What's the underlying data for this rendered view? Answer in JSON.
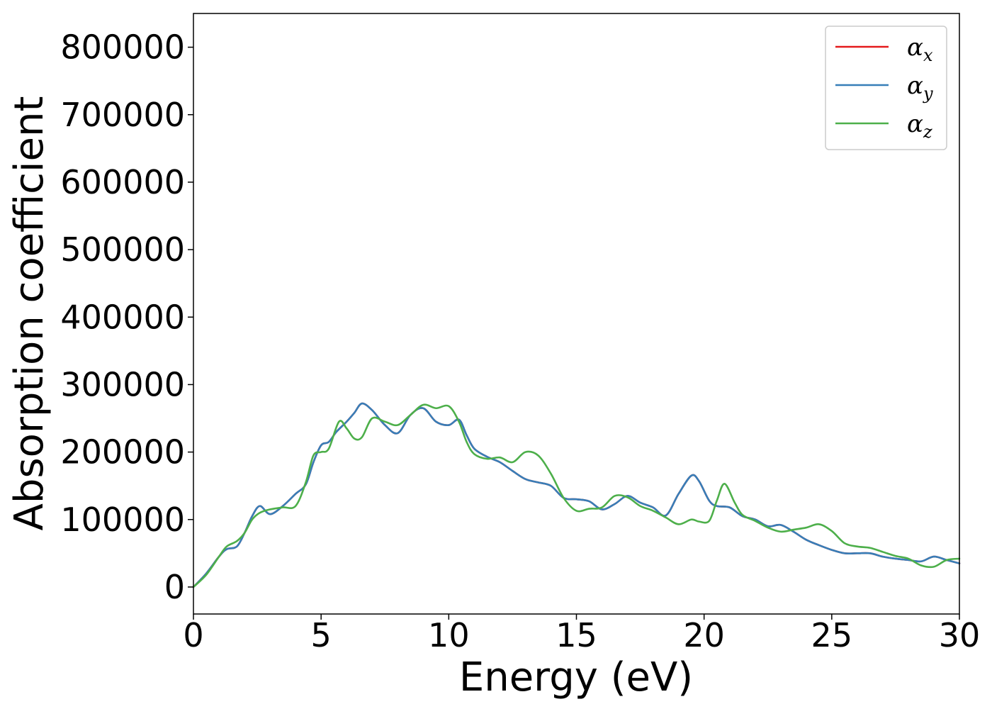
{
  "chart_data": {
    "type": "line",
    "xlabel": "Energy (eV)",
    "ylabel": "Absorption coefficient",
    "xlim": [
      0,
      30
    ],
    "ylim": [
      -40000,
      850000
    ],
    "xticks": [
      0,
      5,
      10,
      15,
      20,
      25,
      30
    ],
    "xtick_labels": [
      "0",
      "5",
      "10",
      "15",
      "20",
      "25",
      "30"
    ],
    "yticks": [
      0,
      100000,
      200000,
      300000,
      400000,
      500000,
      600000,
      700000,
      800000
    ],
    "ytick_labels": [
      "0",
      "100000",
      "200000",
      "300000",
      "400000",
      "500000",
      "600000",
      "700000",
      "800000"
    ],
    "grid": false,
    "legend_position": "top-right",
    "series": [
      {
        "name": "α",
        "subscript": "x",
        "color": "#e41a1c",
        "x": [
          0,
          0.5,
          1,
          1.3,
          1.7,
          2,
          2.3,
          2.6,
          3,
          3.5,
          4,
          4.4,
          4.7,
          5,
          5.3,
          5.6,
          6,
          6.3,
          6.6,
          7,
          7.5,
          8,
          8.5,
          9,
          9.5,
          10,
          10.4,
          10.7,
          11,
          11.5,
          12,
          12.5,
          13,
          13.5,
          14,
          14.5,
          15,
          15.5,
          16,
          16.5,
          17,
          17.5,
          18,
          18.5,
          19,
          19.5,
          19.8,
          20.2,
          20.5,
          21,
          21.5,
          22,
          22.5,
          23,
          23.5,
          24,
          24.5,
          25,
          25.5,
          26,
          26.5,
          27,
          27.5,
          28,
          28.5,
          29,
          29.5,
          30
        ],
        "y": [
          0,
          20000,
          45000,
          56000,
          60000,
          80000,
          105000,
          120000,
          108000,
          120000,
          138000,
          152000,
          185000,
          210000,
          215000,
          230000,
          245000,
          258000,
          272000,
          262000,
          240000,
          228000,
          255000,
          265000,
          245000,
          240000,
          248000,
          225000,
          205000,
          193000,
          185000,
          172000,
          160000,
          155000,
          150000,
          132000,
          130000,
          127000,
          115000,
          123000,
          135000,
          125000,
          118000,
          106000,
          138000,
          165000,
          157000,
          128000,
          120000,
          118000,
          105000,
          100000,
          90000,
          92000,
          82000,
          70000,
          62000,
          55000,
          50000,
          50000,
          50000,
          45000,
          42000,
          40000,
          38000,
          45000,
          40000,
          35000
        ]
      },
      {
        "name": "α",
        "subscript": "y",
        "color": "#377eb8",
        "x": [
          0,
          0.5,
          1,
          1.3,
          1.7,
          2,
          2.3,
          2.6,
          3,
          3.5,
          4,
          4.4,
          4.7,
          5,
          5.3,
          5.6,
          6,
          6.3,
          6.6,
          7,
          7.5,
          8,
          8.5,
          9,
          9.5,
          10,
          10.4,
          10.7,
          11,
          11.5,
          12,
          12.5,
          13,
          13.5,
          14,
          14.5,
          15,
          15.5,
          16,
          16.5,
          17,
          17.5,
          18,
          18.5,
          19,
          19.5,
          19.8,
          20.2,
          20.5,
          21,
          21.5,
          22,
          22.5,
          23,
          23.5,
          24,
          24.5,
          25,
          25.5,
          26,
          26.5,
          27,
          27.5,
          28,
          28.5,
          29,
          29.5,
          30
        ],
        "y": [
          0,
          20000,
          45000,
          56000,
          60000,
          80000,
          105000,
          120000,
          108000,
          120000,
          138000,
          152000,
          185000,
          210000,
          215000,
          230000,
          245000,
          258000,
          272000,
          262000,
          240000,
          228000,
          255000,
          265000,
          245000,
          240000,
          248000,
          225000,
          205000,
          193000,
          185000,
          172000,
          160000,
          155000,
          150000,
          132000,
          130000,
          127000,
          115000,
          123000,
          135000,
          125000,
          118000,
          106000,
          138000,
          165000,
          157000,
          128000,
          120000,
          118000,
          105000,
          100000,
          90000,
          92000,
          82000,
          70000,
          62000,
          55000,
          50000,
          50000,
          50000,
          45000,
          42000,
          40000,
          38000,
          45000,
          40000,
          35000
        ]
      },
      {
        "name": "α",
        "subscript": "z",
        "color": "#4daf4a",
        "x": [
          0,
          0.5,
          1,
          1.3,
          1.7,
          2,
          2.3,
          2.6,
          3,
          3.5,
          4,
          4.4,
          4.7,
          5,
          5.3,
          5.7,
          6,
          6.3,
          6.6,
          7,
          7.5,
          8,
          8.5,
          9,
          9.5,
          10,
          10.4,
          10.7,
          11,
          11.5,
          12,
          12.5,
          13,
          13.5,
          14,
          14.5,
          15,
          15.5,
          16,
          16.5,
          17,
          17.5,
          18,
          18.5,
          19,
          19.5,
          19.8,
          20.2,
          20.5,
          20.8,
          21.2,
          21.5,
          22,
          22.5,
          23,
          23.5,
          24,
          24.5,
          25,
          25.5,
          26,
          26.5,
          27,
          27.5,
          28,
          28.5,
          29,
          29.5,
          30
        ],
        "y": [
          0,
          18000,
          45000,
          60000,
          68000,
          80000,
          100000,
          110000,
          115000,
          118000,
          120000,
          155000,
          195000,
          200000,
          205000,
          245000,
          235000,
          220000,
          222000,
          250000,
          245000,
          240000,
          255000,
          270000,
          265000,
          268000,
          245000,
          215000,
          197000,
          190000,
          192000,
          185000,
          200000,
          195000,
          168000,
          132000,
          113000,
          116000,
          118000,
          135000,
          133000,
          120000,
          113000,
          103000,
          93000,
          100000,
          97000,
          98000,
          128000,
          153000,
          125000,
          107000,
          98000,
          88000,
          82000,
          85000,
          88000,
          93000,
          83000,
          65000,
          60000,
          58000,
          52000,
          46000,
          42000,
          32000,
          30000,
          40000,
          42000
        ]
      }
    ]
  }
}
